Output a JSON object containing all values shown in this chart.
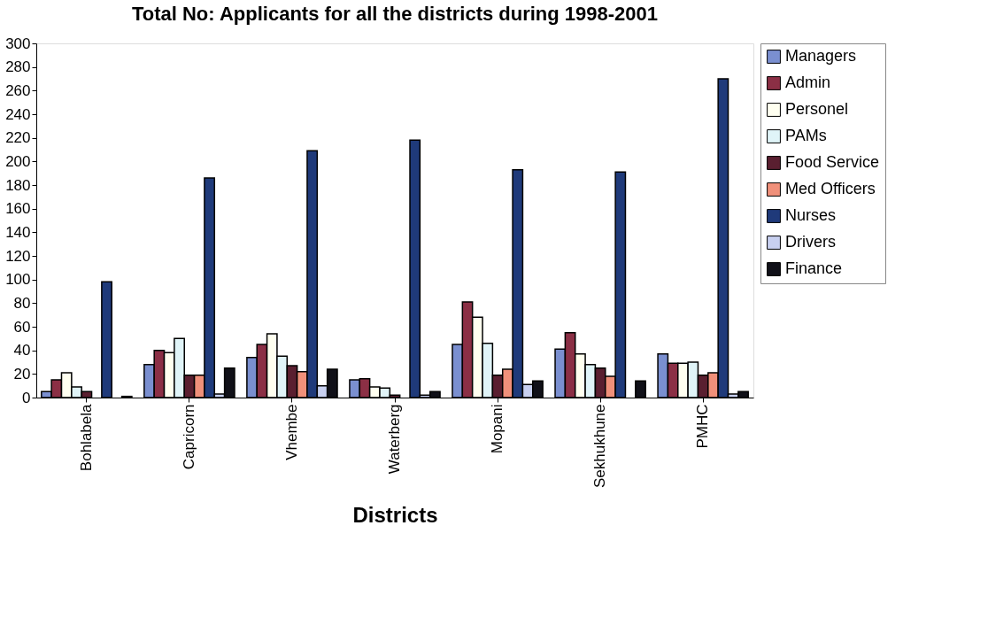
{
  "chart_data": {
    "type": "bar",
    "title": "Total No: Applicants for all the districts during 1998-2001",
    "xlabel": "Districts",
    "categories": [
      "Bohlabela",
      "Capricorn",
      "Vhembe",
      "Waterberg",
      "Mopani",
      "Sekhukhune",
      "PMHC"
    ],
    "series": [
      {
        "name": "Managers",
        "color": "#7a8fd0",
        "values": [
          5,
          28,
          34,
          15,
          45,
          41,
          37
        ]
      },
      {
        "name": "Admin",
        "color": "#8b2f45",
        "values": [
          15,
          40,
          45,
          16,
          81,
          55,
          29
        ]
      },
      {
        "name": "Personel",
        "color": "#fffff0",
        "values": [
          21,
          38,
          54,
          9,
          68,
          37,
          29
        ]
      },
      {
        "name": "PAMs",
        "color": "#e0f4f8",
        "values": [
          9,
          50,
          35,
          8,
          46,
          28,
          30
        ]
      },
      {
        "name": "Food Service",
        "color": "#5a1f30",
        "values": [
          5,
          19,
          27,
          2,
          19,
          25,
          19
        ]
      },
      {
        "name": "Med Officers",
        "color": "#f0907a",
        "values": [
          0,
          19,
          22,
          0,
          24,
          18,
          21
        ]
      },
      {
        "name": "Nurses",
        "color": "#1f3a7a",
        "values": [
          98,
          186,
          209,
          218,
          193,
          191,
          270
        ]
      },
      {
        "name": "Drivers",
        "color": "#c8d0f0",
        "values": [
          0,
          3,
          10,
          2,
          11,
          0,
          3
        ]
      },
      {
        "name": "Finance",
        "color": "#101018",
        "values": [
          1,
          25,
          24,
          5,
          14,
          14,
          5
        ]
      }
    ],
    "ylim": [
      0,
      300
    ],
    "yticks": [
      0,
      20,
      40,
      60,
      80,
      100,
      120,
      140,
      160,
      180,
      200,
      220,
      240,
      260,
      280,
      300
    ],
    "grid": false,
    "legend": "right"
  }
}
